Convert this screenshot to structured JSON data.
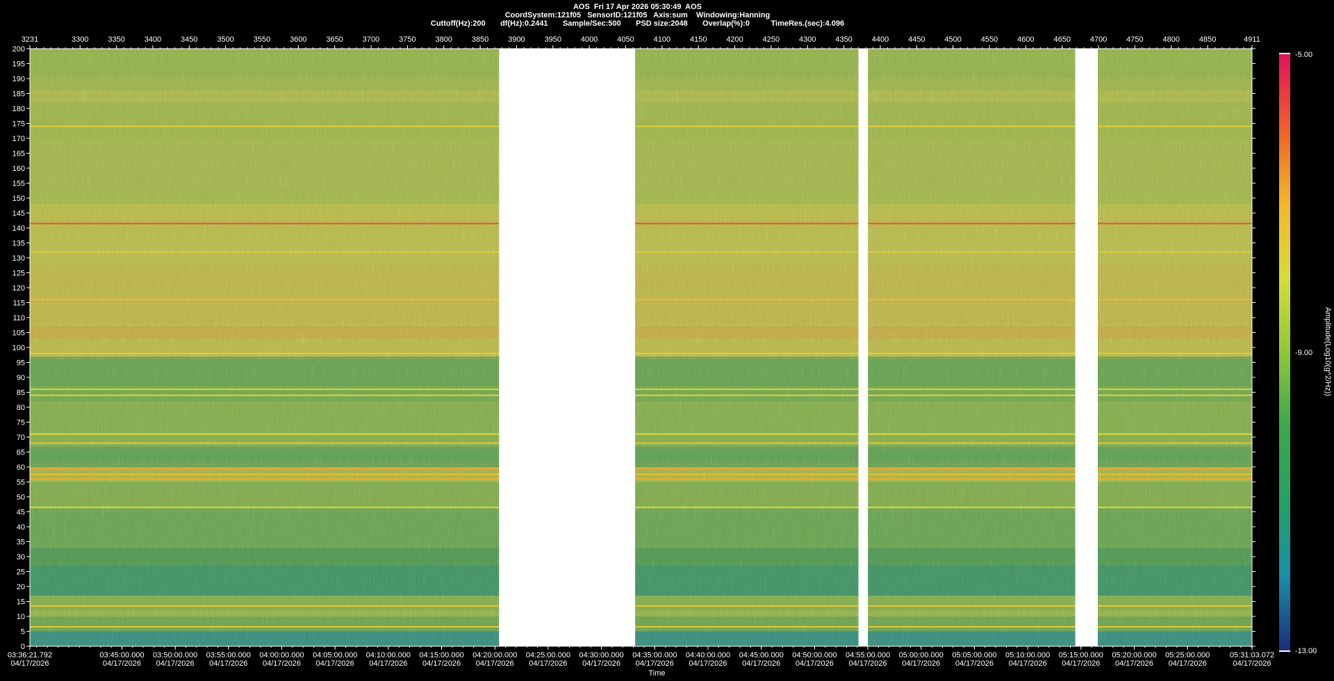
{
  "header": {
    "line1": "AOS  Fri 17 Apr 2026 05:30:49  AOS",
    "line2": "CoordSystem:121f05   SensorID:121f05   Axis:sum    Windowing:Hanning",
    "line3": "Cuttoff(Hz):200       df(Hz):0.2441       Sample/Sec:500       PSD size:2048       Overlap(%):0          TimeRes.(sec):4.096"
  },
  "chart_data": {
    "type": "heatmap",
    "title": "AOS  Fri 17 Apr 2026 05:30:49  AOS",
    "ylabel": "",
    "xlabel": "Time",
    "colorbar_label": "Amplitude(Log10(g^2/Hz))",
    "colorbar_ticks": [
      "-5.00",
      "-9.00",
      "-13.00"
    ],
    "colorbar_range": [
      -13,
      -5
    ],
    "colormap": [
      "#1c2d7c",
      "#1a8fa8",
      "#26a064",
      "#3aa84a",
      "#8ec83c",
      "#d6dc3a",
      "#f4b52c",
      "#ee5f2a",
      "#e0145a"
    ],
    "ylim": [
      0,
      200
    ],
    "y_ticks": [
      200,
      195,
      190,
      185,
      180,
      175,
      170,
      165,
      160,
      155,
      150,
      145,
      140,
      135,
      130,
      125,
      120,
      115,
      110,
      105,
      100,
      95,
      90,
      85,
      80,
      75,
      70,
      65,
      60,
      55,
      50,
      45,
      40,
      35,
      30,
      25,
      20,
      15,
      10,
      5,
      0
    ],
    "top_axis": {
      "range": [
        3231,
        4911
      ],
      "ticks": [
        "3231",
        "3300",
        "3350",
        "3400",
        "3450",
        "3500",
        "3550",
        "3600",
        "3650",
        "3700",
        "3750",
        "3800",
        "3850",
        "3900",
        "3950",
        "4000",
        "4050",
        "4100",
        "4150",
        "4200",
        "4250",
        "4300",
        "4350",
        "4400",
        "4450",
        "4500",
        "4550",
        "4600",
        "4650",
        "4700",
        "4750",
        "4800",
        "4850",
        "4911"
      ]
    },
    "time_axis": {
      "start": "03:36:21.792",
      "end": "05:31:03.072",
      "date": "04/17/2026",
      "ticks": [
        "03:36:21.792",
        "03:45:00.000",
        "03:50:00.000",
        "03:55:00.000",
        "04:00:00.000",
        "04:05:00.000",
        "04:10:00.000",
        "04:15:00.000",
        "04:20:00.000",
        "04:25:00.000",
        "04:30:00.000",
        "04:35:00.000",
        "04:40:00.000",
        "04:45:00.000",
        "04:50:00.000",
        "04:55:00.000",
        "05:00:00.000",
        "05:05:00.000",
        "05:10:00.000",
        "05:15:00.000",
        "05:20:00.000",
        "05:25:00.000",
        "05:31:03.072"
      ]
    },
    "data_gaps": [
      {
        "from": 3876,
        "to": 4063
      },
      {
        "from": 4370,
        "to": 4383
      },
      {
        "from": 4668,
        "to": 4699
      }
    ],
    "spectral_lines_hz": [
      {
        "hz": 174,
        "level": -7.7
      },
      {
        "hz": 141.5,
        "level": -5.8
      },
      {
        "hz": 132,
        "level": -7.6
      },
      {
        "hz": 116,
        "level": -7.0
      },
      {
        "hz": 98,
        "level": -7.7
      },
      {
        "hz": 86,
        "level": -8.1
      },
      {
        "hz": 84,
        "level": -7.8
      },
      {
        "hz": 71,
        "level": -8.0
      },
      {
        "hz": 68,
        "level": -7.4
      },
      {
        "hz": 59.5,
        "level": -6.8
      },
      {
        "hz": 57.5,
        "level": -7.3
      },
      {
        "hz": 56,
        "level": -6.9
      },
      {
        "hz": 46.5,
        "level": -7.9
      },
      {
        "hz": 13.5,
        "level": -7.4
      },
      {
        "hz": 6.5,
        "level": -7.5
      }
    ],
    "spectral_bands_hz": [
      {
        "from": 182,
        "to": 186,
        "level": -8.1
      },
      {
        "from": 140,
        "to": 146,
        "level": -7.9
      },
      {
        "from": 115,
        "to": 124,
        "level": -7.8
      },
      {
        "from": 103,
        "to": 107,
        "level": -7.2
      },
      {
        "from": 87,
        "to": 96,
        "level": -9.6
      },
      {
        "from": 62,
        "to": 66,
        "level": -9.7
      },
      {
        "from": 34,
        "to": 45,
        "level": -9.5
      },
      {
        "from": 17,
        "to": 26,
        "level": -10.8
      },
      {
        "from": 10,
        "to": 12,
        "level": -8.5
      },
      {
        "from": 0,
        "to": 5,
        "level": -11.5
      }
    ]
  }
}
